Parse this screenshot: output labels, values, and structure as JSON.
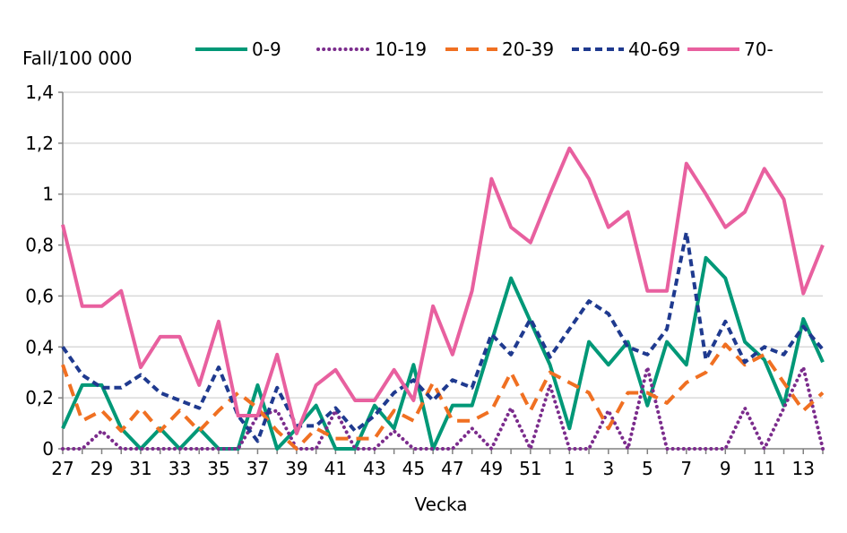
{
  "chart_data": {
    "type": "line",
    "title": "",
    "xlabel": "Vecka",
    "ylabel": "Fall/100 000",
    "ylim": [
      0,
      1.4
    ],
    "yticks": [
      "0",
      "0,2",
      "0,4",
      "0,6",
      "0,8",
      "1",
      "1,2",
      "1,4"
    ],
    "grid": true,
    "legend_position": "top",
    "x": [
      27,
      28,
      29,
      30,
      31,
      32,
      33,
      34,
      35,
      36,
      37,
      38,
      39,
      40,
      41,
      42,
      43,
      44,
      45,
      46,
      47,
      48,
      49,
      50,
      51,
      52,
      1,
      2,
      3,
      4,
      5,
      6,
      7,
      8,
      9,
      10,
      11,
      12,
      13,
      14
    ],
    "xtick_labels": [
      "27",
      "29",
      "31",
      "33",
      "35",
      "37",
      "39",
      "41",
      "43",
      "45",
      "47",
      "49",
      "51",
      "1",
      "3",
      "5",
      "7",
      "9",
      "11",
      "13"
    ],
    "series": [
      {
        "name": "0-9",
        "color": "#009877",
        "style": "solid",
        "values": [
          0.08,
          0.25,
          0.25,
          0.08,
          0,
          0.08,
          0,
          0.08,
          0,
          0,
          0.25,
          0,
          0.08,
          0.17,
          0,
          0,
          0.17,
          0.08,
          0.33,
          0,
          0.17,
          0.17,
          0.42,
          0.67,
          0.5,
          0.33,
          0.08,
          0.42,
          0.33,
          0.42,
          0.17,
          0.42,
          0.33,
          0.75,
          0.67,
          0.42,
          0.35,
          0.17,
          0.51,
          0.34
        ]
      },
      {
        "name": "10-19",
        "color": "#7b2c8c",
        "style": "dotted",
        "values": [
          0,
          0,
          0.07,
          0,
          0,
          0,
          0,
          0,
          0,
          0,
          0.13,
          0.15,
          0,
          0,
          0.15,
          0,
          0,
          0.07,
          0,
          0,
          0,
          0.08,
          0,
          0.16,
          0,
          0.25,
          0,
          0,
          0.15,
          0,
          0.32,
          0,
          0,
          0,
          0,
          0.16,
          0,
          0.16,
          0.32,
          0
        ]
      },
      {
        "name": "20-39",
        "color": "#f07022",
        "style": "dashed",
        "values": [
          0.33,
          0.11,
          0.15,
          0.07,
          0.16,
          0.07,
          0.15,
          0.07,
          0.15,
          0.22,
          0.16,
          0.07,
          0,
          0.08,
          0.04,
          0.04,
          0.04,
          0.15,
          0.11,
          0.26,
          0.11,
          0.11,
          0.15,
          0.3,
          0.15,
          0.3,
          0.26,
          0.22,
          0.08,
          0.22,
          0.22,
          0.18,
          0.26,
          0.3,
          0.41,
          0.33,
          0.37,
          0.26,
          0.15,
          0.22
        ]
      },
      {
        "name": "40-69",
        "color": "#1f3a8f",
        "style": "shortdash",
        "values": [
          0.4,
          0.29,
          0.24,
          0.24,
          0.29,
          0.22,
          0.19,
          0.16,
          0.32,
          0.13,
          0.03,
          0.24,
          0.09,
          0.09,
          0.16,
          0.07,
          0.13,
          0.22,
          0.27,
          0.19,
          0.27,
          0.24,
          0.45,
          0.37,
          0.51,
          0.36,
          0.47,
          0.58,
          0.53,
          0.4,
          0.37,
          0.47,
          0.85,
          0.35,
          0.5,
          0.34,
          0.4,
          0.37,
          0.48,
          0.39
        ]
      },
      {
        "name": "70-",
        "color": "#e8609f",
        "style": "solid",
        "values": [
          0.88,
          0.56,
          0.56,
          0.62,
          0.32,
          0.44,
          0.44,
          0.25,
          0.5,
          0.13,
          0.13,
          0.37,
          0.06,
          0.25,
          0.31,
          0.19,
          0.19,
          0.31,
          0.19,
          0.56,
          0.37,
          0.62,
          1.06,
          0.87,
          0.81,
          1.0,
          1.18,
          1.06,
          0.87,
          0.93,
          0.62,
          0.62,
          1.12,
          1.0,
          0.87,
          0.93,
          1.1,
          0.98,
          0.61,
          0.8
        ]
      }
    ]
  }
}
